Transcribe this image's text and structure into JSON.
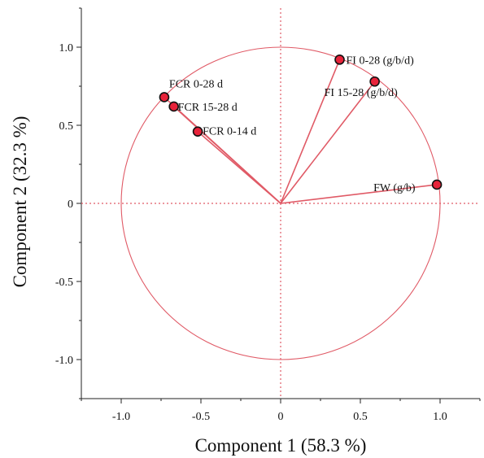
{
  "chart_data": {
    "type": "scatter",
    "subtype": "pca-loading-biplot",
    "xlabel": "Component 1  (58.3 %)",
    "ylabel": "Component 2  (32.3 %)",
    "xlim": [
      -1.25,
      1.25
    ],
    "ylim": [
      -1.25,
      1.25
    ],
    "xticks": [
      -1.0,
      -0.5,
      0,
      0.5,
      1.0
    ],
    "xtick_labels": [
      "-1.0",
      "-0.5",
      "0",
      "0.5",
      "1.0"
    ],
    "yticks": [
      -1.0,
      -0.5,
      0,
      0.5,
      1.0
    ],
    "ytick_labels": [
      "-1.0",
      "-0.5",
      "0",
      "0.5",
      "1.0"
    ],
    "grid": false,
    "unit_circle": true,
    "reference_lines": [
      0,
      0
    ],
    "colors": {
      "vector": "#e05a66",
      "point": "#e8233a",
      "point_outline": "#111111"
    },
    "points": [
      {
        "label": "FI 0-28 (g/b/d)",
        "x": 0.37,
        "y": 0.92
      },
      {
        "label": "FI 15-28 (g/b/d)",
        "x": 0.59,
        "y": 0.78
      },
      {
        "label": "FW (g/b)",
        "x": 0.98,
        "y": 0.12
      },
      {
        "label": "FCR 0-28 d",
        "x": -0.73,
        "y": 0.68
      },
      {
        "label": "FCR 15-28 d",
        "x": -0.67,
        "y": 0.62
      },
      {
        "label": "FCR 0-14 d",
        "x": -0.52,
        "y": 0.46
      }
    ]
  }
}
